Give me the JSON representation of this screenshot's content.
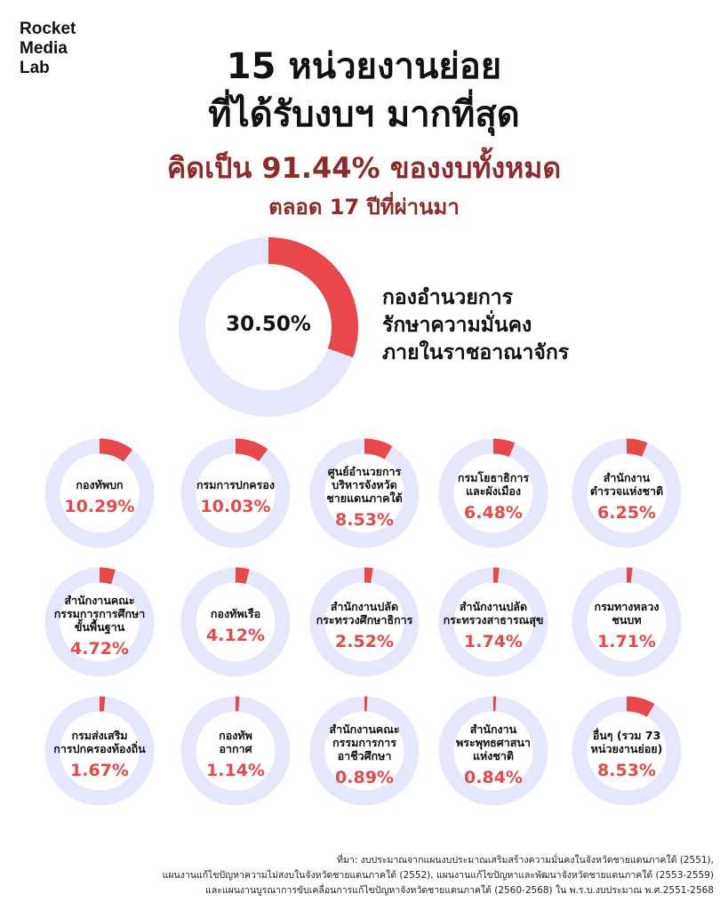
{
  "logo": [
    "Rocket",
    "Media",
    "Lab"
  ],
  "titles": {
    "line1": "15 หน่วยงานย่อย",
    "line2": "ที่ได้รับงบฯ มากที่สุด",
    "line3": "คิดเป็น 91.44% ของงบทั้งหมด",
    "line4": "ตลอด 17 ปีที่ผ่านมา"
  },
  "colors": {
    "accent": "#e8484a",
    "track": "#e5e8fb",
    "title_sub": "#8e2a2a"
  },
  "chart_data": {
    "type": "pie",
    "variant": "donut",
    "unit": "%",
    "main": {
      "label_lines": [
        "กองอำนวยการ",
        "รักษาความมั่นคง",
        "ภายในราชอาณาจักร"
      ],
      "value": 30.5,
      "value_label": "30.50%"
    },
    "items": [
      {
        "label_lines": [
          "กองทัพบก"
        ],
        "value": 10.29,
        "value_label": "10.29%"
      },
      {
        "label_lines": [
          "กรมการปกครอง"
        ],
        "value": 10.03,
        "value_label": "10.03%"
      },
      {
        "label_lines": [
          "ศูนย์อำนวยการ",
          "บริหารจังหวัด",
          "ชายแดนภาคใต้"
        ],
        "value": 8.53,
        "value_label": "8.53%"
      },
      {
        "label_lines": [
          "กรมโยธาธิการ",
          "และผังเมือง"
        ],
        "value": 6.48,
        "value_label": "6.48%"
      },
      {
        "label_lines": [
          "สำนักงาน",
          "ตำรวจแห่งชาติ"
        ],
        "value": 6.25,
        "value_label": "6.25%"
      },
      {
        "label_lines": [
          "สำนักงานคณะ",
          "กรรมการการศึกษา",
          "ขั้นพื้นฐาน"
        ],
        "value": 4.72,
        "value_label": "4.72%"
      },
      {
        "label_lines": [
          "กองทัพเรือ"
        ],
        "value": 4.12,
        "value_label": "4.12%"
      },
      {
        "label_lines": [
          "สำนักงานปลัด",
          "กระทรวงศึกษาธิการ"
        ],
        "value": 2.52,
        "value_label": "2.52%"
      },
      {
        "label_lines": [
          "สำนักงานปลัด",
          "กระทรวงสาธารณสุข"
        ],
        "value": 1.74,
        "value_label": "1.74%"
      },
      {
        "label_lines": [
          "กรมทางหลวง",
          "ชนบท"
        ],
        "value": 1.71,
        "value_label": "1.71%"
      },
      {
        "label_lines": [
          "กรมส่งเสริม",
          "การปกครองท้องถิ่น"
        ],
        "value": 1.67,
        "value_label": "1.67%"
      },
      {
        "label_lines": [
          "กองทัพ",
          "อากาศ"
        ],
        "value": 1.14,
        "value_label": "1.14%"
      },
      {
        "label_lines": [
          "สำนักงานคณะ",
          "กรรมการการ",
          "อาชีวศึกษา"
        ],
        "value": 0.89,
        "value_label": "0.89%"
      },
      {
        "label_lines": [
          "สำนักงาน",
          "พระพุทธศาสนา",
          "แห่งชาติ"
        ],
        "value": 0.84,
        "value_label": "0.84%"
      },
      {
        "label_lines": [
          "อื่นๆ (รวม 73",
          "หน่วยงานย่อย)"
        ],
        "value": 8.53,
        "value_label": "8.53%"
      }
    ]
  },
  "source": [
    "ที่มา: งบประมาณจากแผนงบประมาณเสริมสร้างความมั่นคงในจังหวัดชายแดนภาคใต้ (2551),",
    "แผนงานแก้ไขปัญหาความไม่สงบในจังหวัดชายแดนภาคใต้ (2552), แผนงานแก้ไขปัญหาและพัฒนาจังหวัดชายแดนภาคใต้ (2553-2559)",
    "และแผนงานบูรณาการขับเคลื่อนการแก้ไขปัญหาจังหวัดชายแดนภาคใต้ (2560-2568) ใน พ.ร.บ.งบประมาณ พ.ศ.2551-2568"
  ]
}
